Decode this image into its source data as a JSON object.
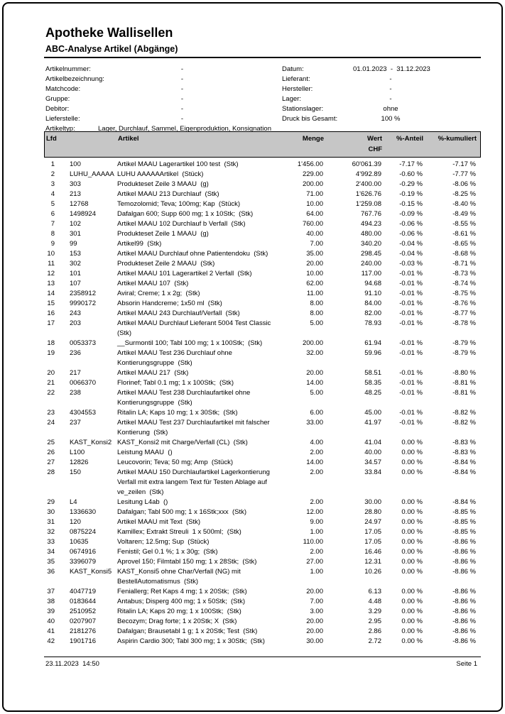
{
  "page": {
    "title": "Apotheke Wallisellen",
    "subtitle": "ABC-Analyse Artikel (Abgänge)"
  },
  "colors": {
    "table_header_bg": "#c6c6c6",
    "table_header_border": "#000000"
  },
  "filters": {
    "left": [
      {
        "label": "Artikelnummer:",
        "value": "-"
      },
      {
        "label": "Artikelbezeichnung:",
        "value": "-"
      },
      {
        "label": "Matchcode:",
        "value": "-"
      },
      {
        "label": "Gruppe:",
        "value": "-"
      },
      {
        "label": "Debitor:",
        "value": "-"
      },
      {
        "label": "Lieferstelle:",
        "value": "-"
      },
      {
        "label": "Artikeltyp:",
        "value": "Lager, Durchlauf, Sammel, Eigenproduktion, Konsignation"
      }
    ],
    "right": [
      {
        "label": "Datum:",
        "value": "01.01.2023  -  31.12.2023"
      },
      {
        "label": "Lieferant:",
        "value": "-"
      },
      {
        "label": "Hersteller:",
        "value": "-"
      },
      {
        "label": "Lager:",
        "value": "-"
      },
      {
        "label": "Stationslager:",
        "value": "ohne"
      },
      {
        "label": "Druck bis Gesamt:",
        "value": "100 %"
      }
    ]
  },
  "table": {
    "columns": {
      "lfd": "Lfd",
      "artikel": "Artikel",
      "menge": "Menge",
      "wert": "Wert",
      "currency": "CHF",
      "anteil": "%-Anteil",
      "kumuliert": "%-kumuliert"
    },
    "rows": [
      {
        "lfd": "1",
        "nr": "100",
        "name": "Artikel MAAU Lagerartikel 100 test  (Stk)",
        "menge": "1'456.00",
        "wert": "60'061.39",
        "anteil": "-7.17 %",
        "kum": "-7.17 %"
      },
      {
        "lfd": "2",
        "nr": "LUHU_AAAAA",
        "name": "LUHU AAAAAArtikel  (Stück)",
        "menge": "229.00",
        "wert": "4'992.89",
        "anteil": "-0.60 %",
        "kum": "-7.77 %"
      },
      {
        "lfd": "3",
        "nr": "303",
        "name": "Produkteset Zeile 3 MAAU  (g)",
        "menge": "200.00",
        "wert": "2'400.00",
        "anteil": "-0.29 %",
        "kum": "-8.06 %"
      },
      {
        "lfd": "4",
        "nr": "213",
        "name": "Artikel MAAU 213 Durchlauf  (Stk)",
        "menge": "71.00",
        "wert": "1'626.76",
        "anteil": "-0.19 %",
        "kum": "-8.25 %"
      },
      {
        "lfd": "5",
        "nr": "12768",
        "name": "Temozolomid; Teva; 100mg; Kap  (Stück)",
        "menge": "10.00",
        "wert": "1'259.08",
        "anteil": "-0.15 %",
        "kum": "-8.40 %"
      },
      {
        "lfd": "6",
        "nr": "1498924",
        "name": "Dafalgan 600; Supp 600 mg; 1 x 10Stk;  (Stk)",
        "menge": "64.00",
        "wert": "767.76",
        "anteil": "-0.09 %",
        "kum": "-8.49 %"
      },
      {
        "lfd": "7",
        "nr": "102",
        "name": "Artikel MAAU 102 Durchlauf b Verfall  (Stk)",
        "menge": "760.00",
        "wert": "494.23",
        "anteil": "-0.06 %",
        "kum": "-8.55 %"
      },
      {
        "lfd": "8",
        "nr": "301",
        "name": "Produkteset Zeile 1 MAAU  (g)",
        "menge": "40.00",
        "wert": "480.00",
        "anteil": "-0.06 %",
        "kum": "-8.61 %"
      },
      {
        "lfd": "9",
        "nr": "99",
        "name": "Artikel99  (Stk)",
        "menge": "7.00",
        "wert": "340.20",
        "anteil": "-0.04 %",
        "kum": "-8.65 %"
      },
      {
        "lfd": "10",
        "nr": "153",
        "name": "Artikel MAAU Durchlauf ohne Patientendoku  (Stk)",
        "menge": "35.00",
        "wert": "298.45",
        "anteil": "-0.04 %",
        "kum": "-8.68 %"
      },
      {
        "lfd": "11",
        "nr": "302",
        "name": "Produkteset Zeile 2 MAAU  (Stk)",
        "menge": "20.00",
        "wert": "240.00",
        "anteil": "-0.03 %",
        "kum": "-8.71 %"
      },
      {
        "lfd": "12",
        "nr": "101",
        "name": "Artikel MAAU 101 Lagerartikel 2 Verfall  (Stk)",
        "menge": "10.00",
        "wert": "117.00",
        "anteil": "-0.01 %",
        "kum": "-8.73 %"
      },
      {
        "lfd": "13",
        "nr": "107",
        "name": "Artikel MAAU 107  (Stk)",
        "menge": "62.00",
        "wert": "94.68",
        "anteil": "-0.01 %",
        "kum": "-8.74 %"
      },
      {
        "lfd": "14",
        "nr": "2358912",
        "name": "Aviral; Creme; 1 x 2g;  (Stk)",
        "menge": "11.00",
        "wert": "91.10",
        "anteil": "-0.01 %",
        "kum": "-8.75 %"
      },
      {
        "lfd": "15",
        "nr": "9990172",
        "name": "Absorin Handcreme; 1x50 ml  (Stk)",
        "menge": "8.00",
        "wert": "84.00",
        "anteil": "-0.01 %",
        "kum": "-8.76 %"
      },
      {
        "lfd": "16",
        "nr": "243",
        "name": "Artikel MAAU 243 Durchlauf/Verfall  (Stk)",
        "menge": "8.00",
        "wert": "82.00",
        "anteil": "-0.01 %",
        "kum": "-8.77 %"
      },
      {
        "lfd": "17",
        "nr": "203",
        "name": "Artikel MAAU Durchlauf Lieferant 5004 Test Classic\n(Stk)",
        "menge": "5.00",
        "wert": "78.93",
        "anteil": "-0.01 %",
        "kum": "-8.78 %"
      },
      {
        "lfd": "18",
        "nr": "0053373",
        "name": "__Surmontil 100; Tabl 100 mg; 1 x 100Stk;  (Stk)",
        "menge": "200.00",
        "wert": "61.94",
        "anteil": "-0.01 %",
        "kum": "-8.79 %"
      },
      {
        "lfd": "19",
        "nr": "236",
        "name": "Artikel MAAU Test 236 Durchlauf ohne\nKontierungsgruppe  (Stk)",
        "menge": "32.00",
        "wert": "59.96",
        "anteil": "-0.01 %",
        "kum": "-8.79 %"
      },
      {
        "lfd": "20",
        "nr": "217",
        "name": "Artikel MAAU 217  (Stk)",
        "menge": "20.00",
        "wert": "58.51",
        "anteil": "-0.01 %",
        "kum": "-8.80 %"
      },
      {
        "lfd": "21",
        "nr": "0066370",
        "name": "Florinef; Tabl 0.1 mg; 1 x 100Stk;  (Stk)",
        "menge": "14.00",
        "wert": "58.35",
        "anteil": "-0.01 %",
        "kum": "-8.81 %"
      },
      {
        "lfd": "22",
        "nr": "238",
        "name": "Artikel MAAU Test 238 Durchlaufartikel ohne\nKontierungsgruppe  (Stk)",
        "menge": "5.00",
        "wert": "48.25",
        "anteil": "-0.01 %",
        "kum": "-8.81 %"
      },
      {
        "lfd": "23",
        "nr": "4304553",
        "name": "Ritalin LA; Kaps 10 mg; 1 x 30Stk;  (Stk)",
        "menge": "6.00",
        "wert": "45.00",
        "anteil": "-0.01 %",
        "kum": "-8.82 %"
      },
      {
        "lfd": "24",
        "nr": "237",
        "name": "Artikel MAAU Test 237 Durchlaufartikel mit falscher\nKontierung  (Stk)",
        "menge": "33.00",
        "wert": "41.97",
        "anteil": "-0.01 %",
        "kum": "-8.82 %"
      },
      {
        "lfd": "25",
        "nr": "KAST_Konsi2",
        "name": "KAST_Konsi2 mit Charge/Verfall (CL)  (Stk)",
        "menge": "4.00",
        "wert": "41.04",
        "anteil": "0.00 %",
        "kum": "-8.83 %"
      },
      {
        "lfd": "26",
        "nr": "L100",
        "name": "Leistung MAAU  ()",
        "menge": "2.00",
        "wert": "40.00",
        "anteil": "0.00 %",
        "kum": "-8.83 %"
      },
      {
        "lfd": "27",
        "nr": "12826",
        "name": "Leucovorin; Teva; 50 mg; Amp  (Stück)",
        "menge": "14.00",
        "wert": "34.57",
        "anteil": "0.00 %",
        "kum": "-8.84 %"
      },
      {
        "lfd": "28",
        "nr": "150",
        "name": "Artikel MAAU 150 Durchlaufartikel Lagerkontierung\nVerfall mit extra langem Text für Testen Ablage auf\nve_zeilen  (Stk)",
        "menge": "2.00",
        "wert": "33.84",
        "anteil": "0.00 %",
        "kum": "-8.84 %"
      },
      {
        "lfd": "29",
        "nr": "L4",
        "name": "Lesitung L4ab  ()",
        "menge": "2.00",
        "wert": "30.00",
        "anteil": "0.00 %",
        "kum": "-8.84 %"
      },
      {
        "lfd": "30",
        "nr": "1336630",
        "name": "Dafalgan; Tabl 500 mg; 1 x 16Stk;xxx  (Stk)",
        "menge": "12.00",
        "wert": "28.80",
        "anteil": "0.00 %",
        "kum": "-8.85 %"
      },
      {
        "lfd": "31",
        "nr": "120",
        "name": "Artikel MAAU mit Text  (Stk)",
        "menge": "9.00",
        "wert": "24.97",
        "anteil": "0.00 %",
        "kum": "-8.85 %"
      },
      {
        "lfd": "32",
        "nr": "0875224",
        "name": "Kamillex; Extrakt Streuli  1 x 500ml;  (Stk)",
        "menge": "1.00",
        "wert": "17.05",
        "anteil": "0.00 %",
        "kum": "-8.85 %"
      },
      {
        "lfd": "33",
        "nr": "10635",
        "name": "Voltaren; 12.5mg; Sup  (Stück)",
        "menge": "110.00",
        "wert": "17.05",
        "anteil": "0.00 %",
        "kum": "-8.86 %"
      },
      {
        "lfd": "34",
        "nr": "0674916",
        "name": "Fenistil; Gel 0.1 %; 1 x 30g;  (Stk)",
        "menge": "2.00",
        "wert": "16.46",
        "anteil": "0.00 %",
        "kum": "-8.86 %"
      },
      {
        "lfd": "35",
        "nr": "3396079",
        "name": "Aprovel 150; Filmtabl 150 mg; 1 x 28Stk;  (Stk)",
        "menge": "27.00",
        "wert": "12.31",
        "anteil": "0.00 %",
        "kum": "-8.86 %"
      },
      {
        "lfd": "36",
        "nr": "KAST_Konsi5",
        "name": "KAST_Konsi5 ohne Char/Verfall (NG) mit\nBestellAutomatismus  (Stk)",
        "menge": "1.00",
        "wert": "10.26",
        "anteil": "0.00 %",
        "kum": "-8.86 %"
      },
      {
        "lfd": "37",
        "nr": "4047719",
        "name": "Feniallerg; Ret Kaps 4 mg; 1 x 20Stk;  (Stk)",
        "menge": "20.00",
        "wert": "6.13",
        "anteil": "0.00 %",
        "kum": "-8.86 %"
      },
      {
        "lfd": "38",
        "nr": "0183644",
        "name": "Antabus; Disperg 400 mg; 1 x 50Stk;  (Stk)",
        "menge": "7.00",
        "wert": "4.48",
        "anteil": "0.00 %",
        "kum": "-8.86 %"
      },
      {
        "lfd": "39",
        "nr": "2510952",
        "name": "Ritalin LA; Kaps 20 mg; 1 x 100Stk;  (Stk)",
        "menge": "3.00",
        "wert": "3.29",
        "anteil": "0.00 %",
        "kum": "-8.86 %"
      },
      {
        "lfd": "40",
        "nr": "0207907",
        "name": "Becozym; Drag forte; 1 x 20Stk; X  (Stk)",
        "menge": "20.00",
        "wert": "2.95",
        "anteil": "0.00 %",
        "kum": "-8.86 %"
      },
      {
        "lfd": "41",
        "nr": "2181276",
        "name": "Dafalgan; Brausetabl 1 g; 1 x 20Stk; Test  (Stk)",
        "menge": "20.00",
        "wert": "2.86",
        "anteil": "0.00 %",
        "kum": "-8.86 %"
      },
      {
        "lfd": "42",
        "nr": "1901716",
        "name": "Aspirin Cardio 300; Tabl 300 mg; 1 x 30Stk;  (Stk)",
        "menge": "30.00",
        "wert": "2.72",
        "anteil": "0.00 %",
        "kum": "-8.86 %"
      }
    ]
  },
  "footer": {
    "datetime": "23.11.2023  14:50",
    "page": "Seite 1"
  }
}
